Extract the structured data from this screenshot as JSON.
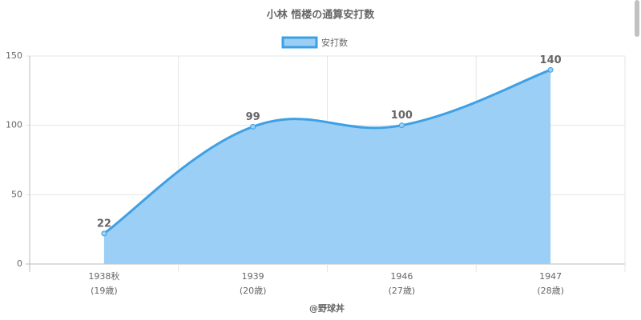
{
  "chart_data": {
    "type": "area",
    "title": "小林 悟楼の通算安打数",
    "categories": [
      [
        "1938秋",
        "(19歳)"
      ],
      [
        "1939",
        "(20歳)"
      ],
      [
        "1946",
        "(27歳)"
      ],
      [
        "1947",
        "(28歳)"
      ]
    ],
    "series": [
      {
        "name": "安打数",
        "color": "#3ea0e4",
        "fill": "#9ccff5",
        "values": [
          22,
          99,
          100,
          140
        ]
      }
    ],
    "ylim": [
      0,
      150
    ],
    "yticks": [
      0,
      50,
      100,
      150
    ],
    "grid": true,
    "legend": "top",
    "footer": "@野球丼"
  }
}
